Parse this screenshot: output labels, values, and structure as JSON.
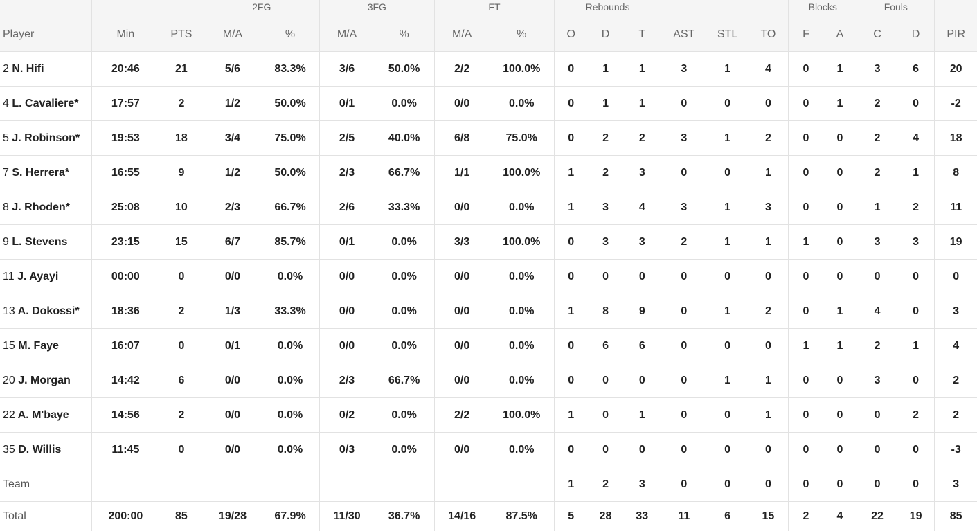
{
  "groups": {
    "fg2": "2FG",
    "fg3": "3FG",
    "ft": "FT",
    "reb": "Rebounds",
    "blk": "Blocks",
    "fouls": "Fouls"
  },
  "columns": {
    "player": "Player",
    "min": "Min",
    "pts": "PTS",
    "fg2_ma": "M/A",
    "fg2_pct": "%",
    "fg3_ma": "M/A",
    "fg3_pct": "%",
    "ft_ma": "M/A",
    "ft_pct": "%",
    "reb_o": "O",
    "reb_d": "D",
    "reb_t": "T",
    "ast": "AST",
    "stl": "STL",
    "to": "TO",
    "blk_f": "F",
    "blk_a": "A",
    "foul_c": "C",
    "foul_d": "D",
    "pir": "PIR"
  },
  "rows": [
    {
      "num": "2",
      "name": "N. Hifi",
      "min": "20:46",
      "pts": "21",
      "fg2": "5/6",
      "fg2p": "83.3%",
      "fg3": "3/6",
      "fg3p": "50.0%",
      "ft": "2/2",
      "ftp": "100.0%",
      "o": "0",
      "d": "1",
      "t": "1",
      "ast": "3",
      "stl": "1",
      "to": "4",
      "bf": "0",
      "ba": "1",
      "fc": "3",
      "fd": "6",
      "pir": "20"
    },
    {
      "num": "4",
      "name": "L. Cavaliere*",
      "min": "17:57",
      "pts": "2",
      "fg2": "1/2",
      "fg2p": "50.0%",
      "fg3": "0/1",
      "fg3p": "0.0%",
      "ft": "0/0",
      "ftp": "0.0%",
      "o": "0",
      "d": "1",
      "t": "1",
      "ast": "0",
      "stl": "0",
      "to": "0",
      "bf": "0",
      "ba": "1",
      "fc": "2",
      "fd": "0",
      "pir": "-2"
    },
    {
      "num": "5",
      "name": "J. Robinson*",
      "min": "19:53",
      "pts": "18",
      "fg2": "3/4",
      "fg2p": "75.0%",
      "fg3": "2/5",
      "fg3p": "40.0%",
      "ft": "6/8",
      "ftp": "75.0%",
      "o": "0",
      "d": "2",
      "t": "2",
      "ast": "3",
      "stl": "1",
      "to": "2",
      "bf": "0",
      "ba": "0",
      "fc": "2",
      "fd": "4",
      "pir": "18"
    },
    {
      "num": "7",
      "name": "S. Herrera*",
      "min": "16:55",
      "pts": "9",
      "fg2": "1/2",
      "fg2p": "50.0%",
      "fg3": "2/3",
      "fg3p": "66.7%",
      "ft": "1/1",
      "ftp": "100.0%",
      "o": "1",
      "d": "2",
      "t": "3",
      "ast": "0",
      "stl": "0",
      "to": "1",
      "bf": "0",
      "ba": "0",
      "fc": "2",
      "fd": "1",
      "pir": "8"
    },
    {
      "num": "8",
      "name": "J. Rhoden*",
      "min": "25:08",
      "pts": "10",
      "fg2": "2/3",
      "fg2p": "66.7%",
      "fg3": "2/6",
      "fg3p": "33.3%",
      "ft": "0/0",
      "ftp": "0.0%",
      "o": "1",
      "d": "3",
      "t": "4",
      "ast": "3",
      "stl": "1",
      "to": "3",
      "bf": "0",
      "ba": "0",
      "fc": "1",
      "fd": "2",
      "pir": "11"
    },
    {
      "num": "9",
      "name": "L. Stevens",
      "min": "23:15",
      "pts": "15",
      "fg2": "6/7",
      "fg2p": "85.7%",
      "fg3": "0/1",
      "fg3p": "0.0%",
      "ft": "3/3",
      "ftp": "100.0%",
      "o": "0",
      "d": "3",
      "t": "3",
      "ast": "2",
      "stl": "1",
      "to": "1",
      "bf": "1",
      "ba": "0",
      "fc": "3",
      "fd": "3",
      "pir": "19"
    },
    {
      "num": "11",
      "name": "J. Ayayi",
      "min": "00:00",
      "pts": "0",
      "fg2": "0/0",
      "fg2p": "0.0%",
      "fg3": "0/0",
      "fg3p": "0.0%",
      "ft": "0/0",
      "ftp": "0.0%",
      "o": "0",
      "d": "0",
      "t": "0",
      "ast": "0",
      "stl": "0",
      "to": "0",
      "bf": "0",
      "ba": "0",
      "fc": "0",
      "fd": "0",
      "pir": "0"
    },
    {
      "num": "13",
      "name": "A. Dokossi*",
      "min": "18:36",
      "pts": "2",
      "fg2": "1/3",
      "fg2p": "33.3%",
      "fg3": "0/0",
      "fg3p": "0.0%",
      "ft": "0/0",
      "ftp": "0.0%",
      "o": "1",
      "d": "8",
      "t": "9",
      "ast": "0",
      "stl": "1",
      "to": "2",
      "bf": "0",
      "ba": "1",
      "fc": "4",
      "fd": "0",
      "pir": "3"
    },
    {
      "num": "15",
      "name": "M. Faye",
      "min": "16:07",
      "pts": "0",
      "fg2": "0/1",
      "fg2p": "0.0%",
      "fg3": "0/0",
      "fg3p": "0.0%",
      "ft": "0/0",
      "ftp": "0.0%",
      "o": "0",
      "d": "6",
      "t": "6",
      "ast": "0",
      "stl": "0",
      "to": "0",
      "bf": "1",
      "ba": "1",
      "fc": "2",
      "fd": "1",
      "pir": "4"
    },
    {
      "num": "20",
      "name": "J. Morgan",
      "min": "14:42",
      "pts": "6",
      "fg2": "0/0",
      "fg2p": "0.0%",
      "fg3": "2/3",
      "fg3p": "66.7%",
      "ft": "0/0",
      "ftp": "0.0%",
      "o": "0",
      "d": "0",
      "t": "0",
      "ast": "0",
      "stl": "1",
      "to": "1",
      "bf": "0",
      "ba": "0",
      "fc": "3",
      "fd": "0",
      "pir": "2"
    },
    {
      "num": "22",
      "name": "A. M'baye",
      "min": "14:56",
      "pts": "2",
      "fg2": "0/0",
      "fg2p": "0.0%",
      "fg3": "0/2",
      "fg3p": "0.0%",
      "ft": "2/2",
      "ftp": "100.0%",
      "o": "1",
      "d": "0",
      "t": "1",
      "ast": "0",
      "stl": "0",
      "to": "1",
      "bf": "0",
      "ba": "0",
      "fc": "0",
      "fd": "2",
      "pir": "2"
    },
    {
      "num": "35",
      "name": "D. Willis",
      "min": "11:45",
      "pts": "0",
      "fg2": "0/0",
      "fg2p": "0.0%",
      "fg3": "0/3",
      "fg3p": "0.0%",
      "ft": "0/0",
      "ftp": "0.0%",
      "o": "0",
      "d": "0",
      "t": "0",
      "ast": "0",
      "stl": "0",
      "to": "0",
      "bf": "0",
      "ba": "0",
      "fc": "0",
      "fd": "0",
      "pir": "-3"
    }
  ],
  "team": {
    "label": "Team",
    "o": "1",
    "d": "2",
    "t": "3",
    "ast": "0",
    "stl": "0",
    "to": "0",
    "bf": "0",
    "ba": "0",
    "fc": "0",
    "fd": "0",
    "pir": "3"
  },
  "total": {
    "label": "Total",
    "min": "200:00",
    "pts": "85",
    "fg2": "19/28",
    "fg2p": "67.9%",
    "fg3": "11/30",
    "fg3p": "36.7%",
    "ft": "14/16",
    "ftp": "87.5%",
    "o": "5",
    "d": "28",
    "t": "33",
    "ast": "11",
    "stl": "6",
    "to": "15",
    "bf": "2",
    "ba": "4",
    "fc": "22",
    "fd": "19",
    "pir": "85"
  }
}
